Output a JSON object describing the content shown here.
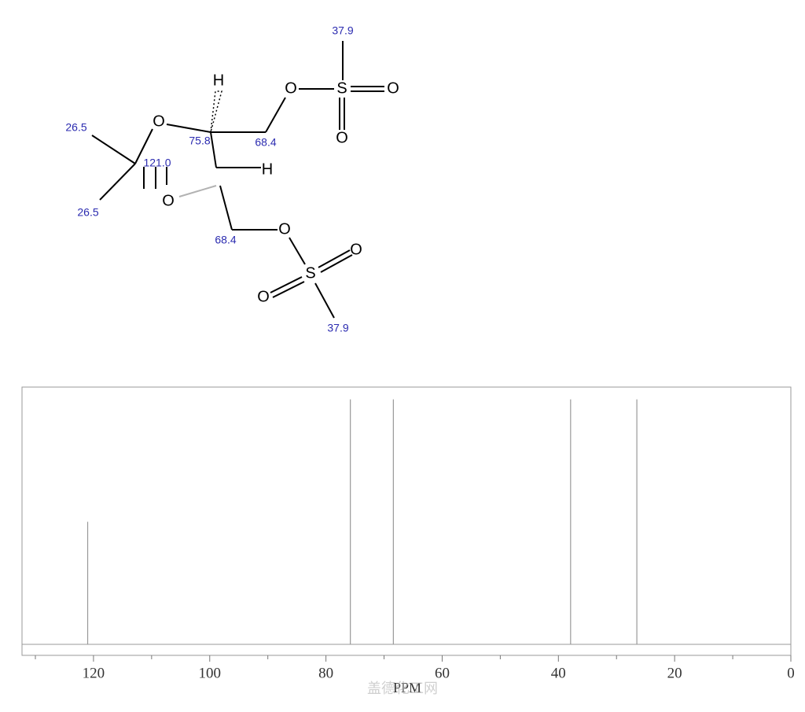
{
  "chart_data": {
    "type": "stem",
    "x_label": "PPM",
    "watermark": "盖德化工网",
    "x": [
      121.0,
      75.8,
      68.4,
      37.9,
      26.5
    ],
    "values": [
      0.5,
      1,
      1,
      1,
      1
    ],
    "color": "#999999",
    "xlim": [
      132.3,
      0
    ],
    "xticks": [
      0,
      20,
      40,
      60,
      80,
      100,
      120
    ],
    "xticks_minor": [
      10,
      30,
      50,
      70,
      90,
      110,
      130
    ],
    "ylim": [
      -0.045,
      1.05
    ]
  },
  "structure": {
    "shifts": [
      "37.9",
      "75.8",
      "68.4",
      "26.5",
      "121.0",
      "26.5",
      "68.4",
      "37.9"
    ],
    "atoms": [
      "O",
      "H",
      "O",
      "S",
      "O",
      "O",
      "O",
      "H",
      "O",
      "S",
      "O",
      "O"
    ]
  }
}
